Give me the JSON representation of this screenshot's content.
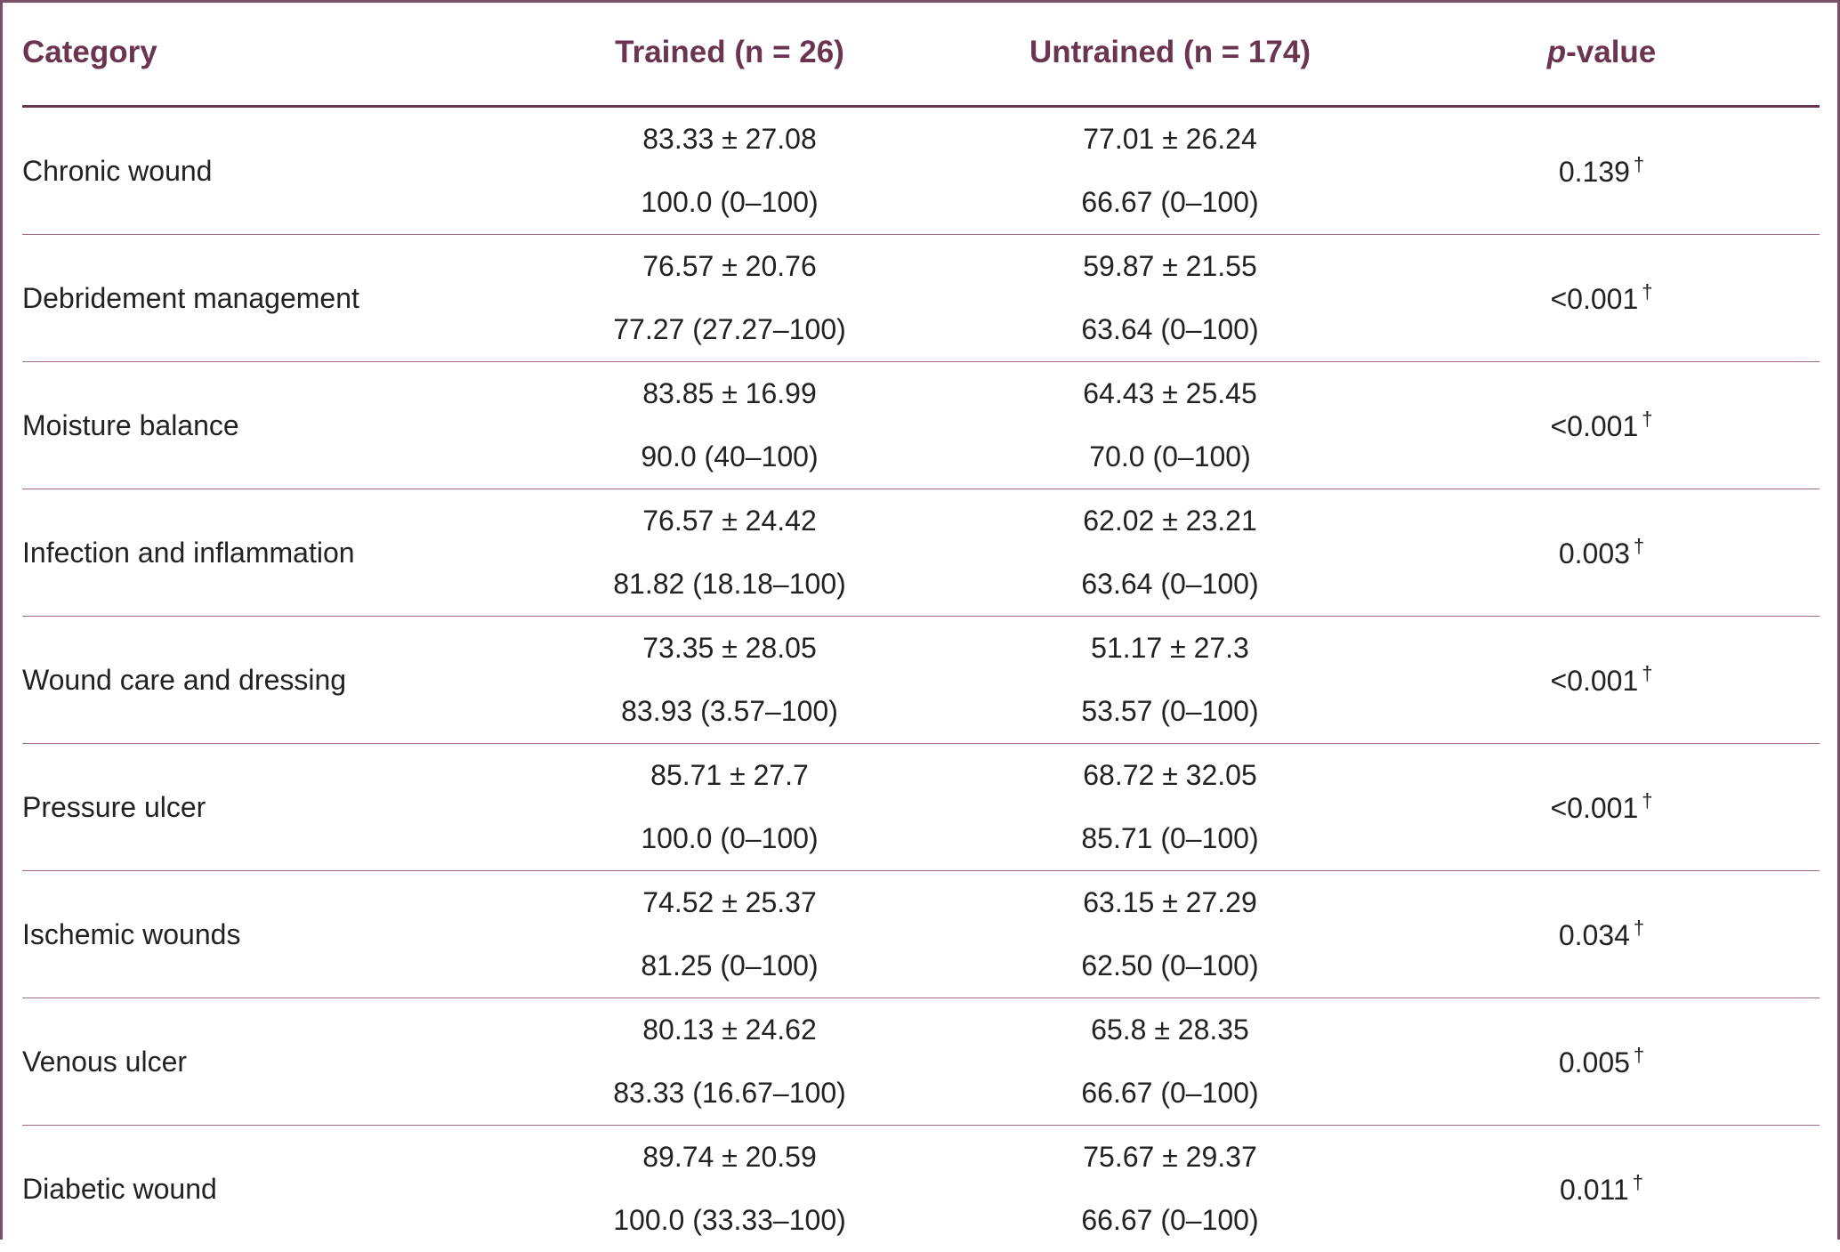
{
  "headers": {
    "category": "Category",
    "trained": "Trained (n = 26)",
    "untrained": "Untrained (n = 174)",
    "p_italic": "p",
    "p_rest": "-value"
  },
  "rows": [
    {
      "category": "Chronic wound",
      "trained_mean": "83.33 ± 27.08",
      "trained_median": "100.0 (0–100)",
      "untrained_mean": "77.01 ± 26.24",
      "untrained_median": "66.67 (0–100)",
      "p": "0.139",
      "mark": "†"
    },
    {
      "category": "Debridement management",
      "trained_mean": "76.57 ± 20.76",
      "trained_median": "77.27 (27.27–100)",
      "untrained_mean": "59.87 ± 21.55",
      "untrained_median": "63.64 (0–100)",
      "p": "<0.001",
      "mark": "†"
    },
    {
      "category": "Moisture balance",
      "trained_mean": "83.85 ± 16.99",
      "trained_median": "90.0 (40–100)",
      "untrained_mean": "64.43 ± 25.45",
      "untrained_median": "70.0 (0–100)",
      "p": "<0.001",
      "mark": "†"
    },
    {
      "category": "Infection and inflammation",
      "trained_mean": "76.57 ± 24.42",
      "trained_median": "81.82 (18.18–100)",
      "untrained_mean": "62.02 ± 23.21",
      "untrained_median": "63.64 (0–100)",
      "p": "0.003",
      "mark": "†"
    },
    {
      "category": "Wound care and dressing",
      "trained_mean": "73.35 ± 28.05",
      "trained_median": "83.93 (3.57–100)",
      "untrained_mean": "51.17 ± 27.3",
      "untrained_median": "53.57 (0–100)",
      "p": "<0.001",
      "mark": "†"
    },
    {
      "category": "Pressure ulcer",
      "trained_mean": "85.71 ± 27.7",
      "trained_median": "100.0 (0–100)",
      "untrained_mean": "68.72 ± 32.05",
      "untrained_median": "85.71 (0–100)",
      "p": "<0.001",
      "mark": "†"
    },
    {
      "category": "Ischemic wounds",
      "trained_mean": "74.52 ± 25.37",
      "trained_median": "81.25 (0–100)",
      "untrained_mean": "63.15 ± 27.29",
      "untrained_median": "62.50 (0–100)",
      "p": "0.034",
      "mark": "†"
    },
    {
      "category": "Venous ulcer",
      "trained_mean": "80.13 ± 24.62",
      "trained_median": "83.33 (16.67–100)",
      "untrained_mean": "65.8 ± 28.35",
      "untrained_median": "66.67 (0–100)",
      "p": "0.005",
      "mark": "†"
    },
    {
      "category": "Diabetic wound",
      "trained_mean": "89.74 ± 20.59",
      "trained_median": "100.0 (33.33–100)",
      "untrained_mean": "75.67 ± 29.37",
      "untrained_median": "66.67 (0–100)",
      "p": "0.011",
      "mark": "†"
    }
  ]
}
